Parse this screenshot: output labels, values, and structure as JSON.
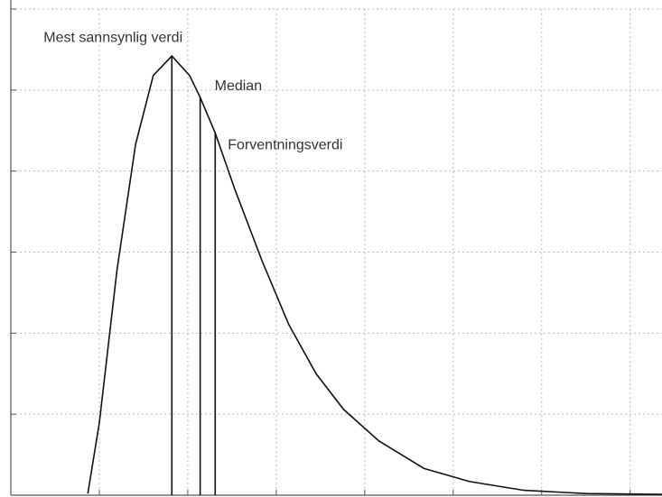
{
  "chart_data": {
    "type": "line",
    "x": [
      0.87,
      1.0,
      1.2,
      1.41,
      1.61,
      1.82,
      2.02,
      2.14,
      2.31,
      2.53,
      2.84,
      3.14,
      3.45,
      3.76,
      4.16,
      4.67,
      5.18,
      5.8,
      6.51,
      7.36
    ],
    "series": [
      {
        "color": "#111111",
        "values": [
          0.02,
          0.89,
          2.78,
          4.33,
          5.18,
          5.42,
          5.18,
          4.91,
          4.47,
          3.78,
          2.89,
          2.11,
          1.5,
          1.06,
          0.67,
          0.33,
          0.17,
          0.06,
          0.02,
          0.01
        ]
      }
    ],
    "markers": [
      {
        "label": "Mest sannsynlig verdi",
        "x": 1.82,
        "y": 5.42
      },
      {
        "label": "Median",
        "x": 2.14,
        "y": 4.91
      },
      {
        "label": "Forventningsverdi",
        "x": 2.31,
        "y": 4.47
      }
    ],
    "xlim": [
      0,
      7.36
    ],
    "ylim": [
      0,
      6
    ],
    "xticks": [
      0,
      1,
      2,
      3,
      4,
      5,
      6,
      7
    ],
    "yticks": [
      0,
      1,
      2,
      3,
      4,
      5,
      6
    ],
    "grid": true
  }
}
